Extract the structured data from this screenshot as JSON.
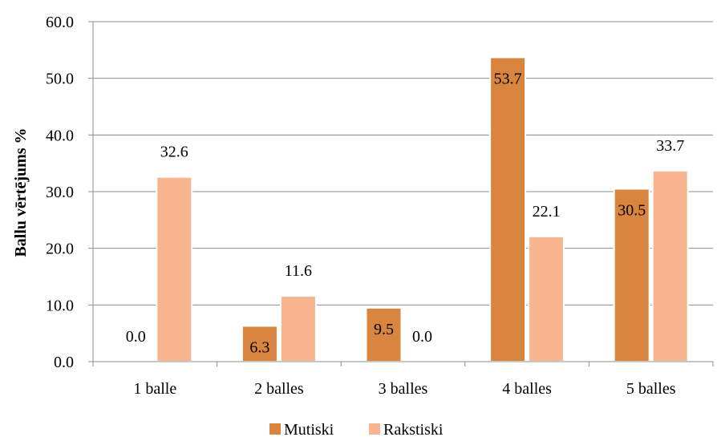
{
  "chart_data": {
    "type": "bar",
    "categories": [
      "1 balle",
      "2 balles",
      "3 balles",
      "4 balles",
      "5 balles"
    ],
    "series": [
      {
        "name": "Mutiski",
        "values": [
          0.0,
          6.3,
          9.5,
          53.7,
          30.5
        ],
        "color": "#D9843F"
      },
      {
        "name": "Rakstiski",
        "values": [
          32.6,
          11.6,
          0.0,
          22.1,
          33.7
        ],
        "color": "#F8B58F"
      }
    ],
    "ylabel": "Ballu vērtējums %",
    "ylim": [
      0,
      60
    ],
    "yticks": [
      "0.0",
      "10.0",
      "20.0",
      "30.0",
      "40.0",
      "50.0",
      "60.0"
    ],
    "grid": true,
    "legend": "bottom"
  }
}
